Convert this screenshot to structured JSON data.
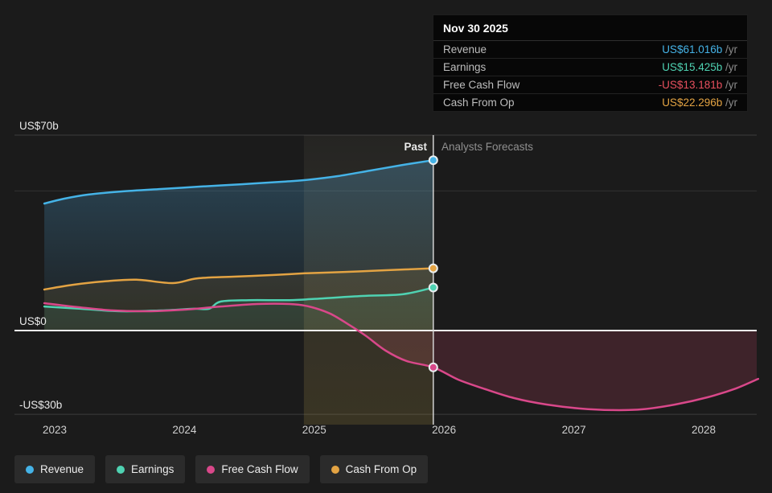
{
  "tooltip": {
    "title": "Nov 30 2025",
    "rows": [
      {
        "label": "Revenue",
        "value": "US$61.016b",
        "suffix": " /yr",
        "color": "#45b3e7"
      },
      {
        "label": "Earnings",
        "value": "US$15.425b",
        "suffix": " /yr",
        "color": "#4fd2b2"
      },
      {
        "label": "Free Cash Flow",
        "value": "-US$13.181b",
        "suffix": " /yr",
        "color": "#e8505e"
      },
      {
        "label": "Cash From Op",
        "value": "US$22.296b",
        "suffix": " /yr",
        "color": "#e3a343"
      }
    ]
  },
  "divider_labels": {
    "past": "Past",
    "forecast": "Analysts Forecasts"
  },
  "legend": [
    {
      "label": "Revenue",
      "color": "#45b3e7"
    },
    {
      "label": "Earnings",
      "color": "#4fd2b2"
    },
    {
      "label": "Free Cash Flow",
      "color": "#d9488a"
    },
    {
      "label": "Cash From Op",
      "color": "#e3a343"
    }
  ],
  "chart_data": {
    "type": "line",
    "unit": "US$ billions per year",
    "title": "",
    "x_axis": {
      "min": 2022.92,
      "max": 2028.42,
      "ticks": [
        {
          "value": 2023,
          "label": "2023"
        },
        {
          "value": 2024,
          "label": "2024"
        },
        {
          "value": 2025,
          "label": "2025"
        },
        {
          "value": 2026,
          "label": "2026"
        },
        {
          "value": 2027,
          "label": "2027"
        },
        {
          "value": 2028,
          "label": "2028"
        }
      ]
    },
    "y_axis": {
      "min": -35,
      "max": 75,
      "ticks": [
        {
          "value": 70,
          "label": "US$70b"
        },
        {
          "value": 0,
          "label": "US$0"
        },
        {
          "value": -30,
          "label": "-US$30b"
        }
      ],
      "minor_gridlines": [
        50
      ]
    },
    "divider": {
      "x": 2025.917,
      "date": "Nov 30 2025"
    },
    "highlight_band": {
      "from": 2024.92,
      "to": 2025.917
    },
    "series": [
      {
        "name": "Revenue",
        "color": "#45b3e7",
        "divider_value": 61.016,
        "points": [
          [
            2022.92,
            45.5
          ],
          [
            2023.07,
            47.2
          ],
          [
            2023.26,
            48.7
          ],
          [
            2023.51,
            49.8
          ],
          [
            2023.82,
            50.7
          ],
          [
            2024.13,
            51.6
          ],
          [
            2024.44,
            52.4
          ],
          [
            2024.75,
            53.3
          ],
          [
            2024.93,
            53.9
          ],
          [
            2025.18,
            55.3
          ],
          [
            2025.43,
            57.3
          ],
          [
            2025.68,
            59.3
          ],
          [
            2025.917,
            61.016
          ]
        ]
      },
      {
        "name": "Cash From Op",
        "color": "#e3a343",
        "divider_value": 22.296,
        "points": [
          [
            2022.92,
            14.7
          ],
          [
            2023.14,
            16.4
          ],
          [
            2023.38,
            17.6
          ],
          [
            2023.63,
            18.2
          ],
          [
            2023.91,
            17.0
          ],
          [
            2024.1,
            18.7
          ],
          [
            2024.38,
            19.3
          ],
          [
            2024.69,
            19.9
          ],
          [
            2024.93,
            20.5
          ],
          [
            2025.24,
            21.0
          ],
          [
            2025.55,
            21.6
          ],
          [
            2025.917,
            22.296
          ]
        ]
      },
      {
        "name": "Earnings",
        "color": "#4fd2b2",
        "divider_value": 15.425,
        "points": [
          [
            2022.92,
            8.6
          ],
          [
            2023.2,
            7.8
          ],
          [
            2023.51,
            6.9
          ],
          [
            2023.82,
            7.2
          ],
          [
            2024.07,
            7.8
          ],
          [
            2024.19,
            7.8
          ],
          [
            2024.28,
            10.4
          ],
          [
            2024.5,
            10.9
          ],
          [
            2024.81,
            10.9
          ],
          [
            2025.06,
            11.5
          ],
          [
            2025.37,
            12.4
          ],
          [
            2025.68,
            13.0
          ],
          [
            2025.917,
            15.425
          ]
        ]
      },
      {
        "name": "Free Cash Flow",
        "color": "#d9488a",
        "divider_value": -13.181,
        "points": [
          [
            2022.92,
            9.8
          ],
          [
            2023.17,
            8.4
          ],
          [
            2023.45,
            7.2
          ],
          [
            2023.72,
            6.9
          ],
          [
            2024.0,
            7.5
          ],
          [
            2024.28,
            8.6
          ],
          [
            2024.56,
            9.5
          ],
          [
            2024.81,
            9.5
          ],
          [
            2024.96,
            8.6
          ],
          [
            2025.12,
            6.1
          ],
          [
            2025.27,
            2.0
          ],
          [
            2025.4,
            -2.0
          ],
          [
            2025.55,
            -7.2
          ],
          [
            2025.71,
            -10.9
          ],
          [
            2025.917,
            -13.181
          ],
          [
            2026.11,
            -17.6
          ],
          [
            2026.3,
            -20.7
          ],
          [
            2026.54,
            -24.2
          ],
          [
            2026.79,
            -26.5
          ],
          [
            2027.04,
            -27.9
          ],
          [
            2027.29,
            -28.5
          ],
          [
            2027.53,
            -28.2
          ],
          [
            2027.78,
            -26.5
          ],
          [
            2028.03,
            -23.9
          ],
          [
            2028.25,
            -20.7
          ],
          [
            2028.42,
            -17.3
          ]
        ]
      }
    ]
  }
}
